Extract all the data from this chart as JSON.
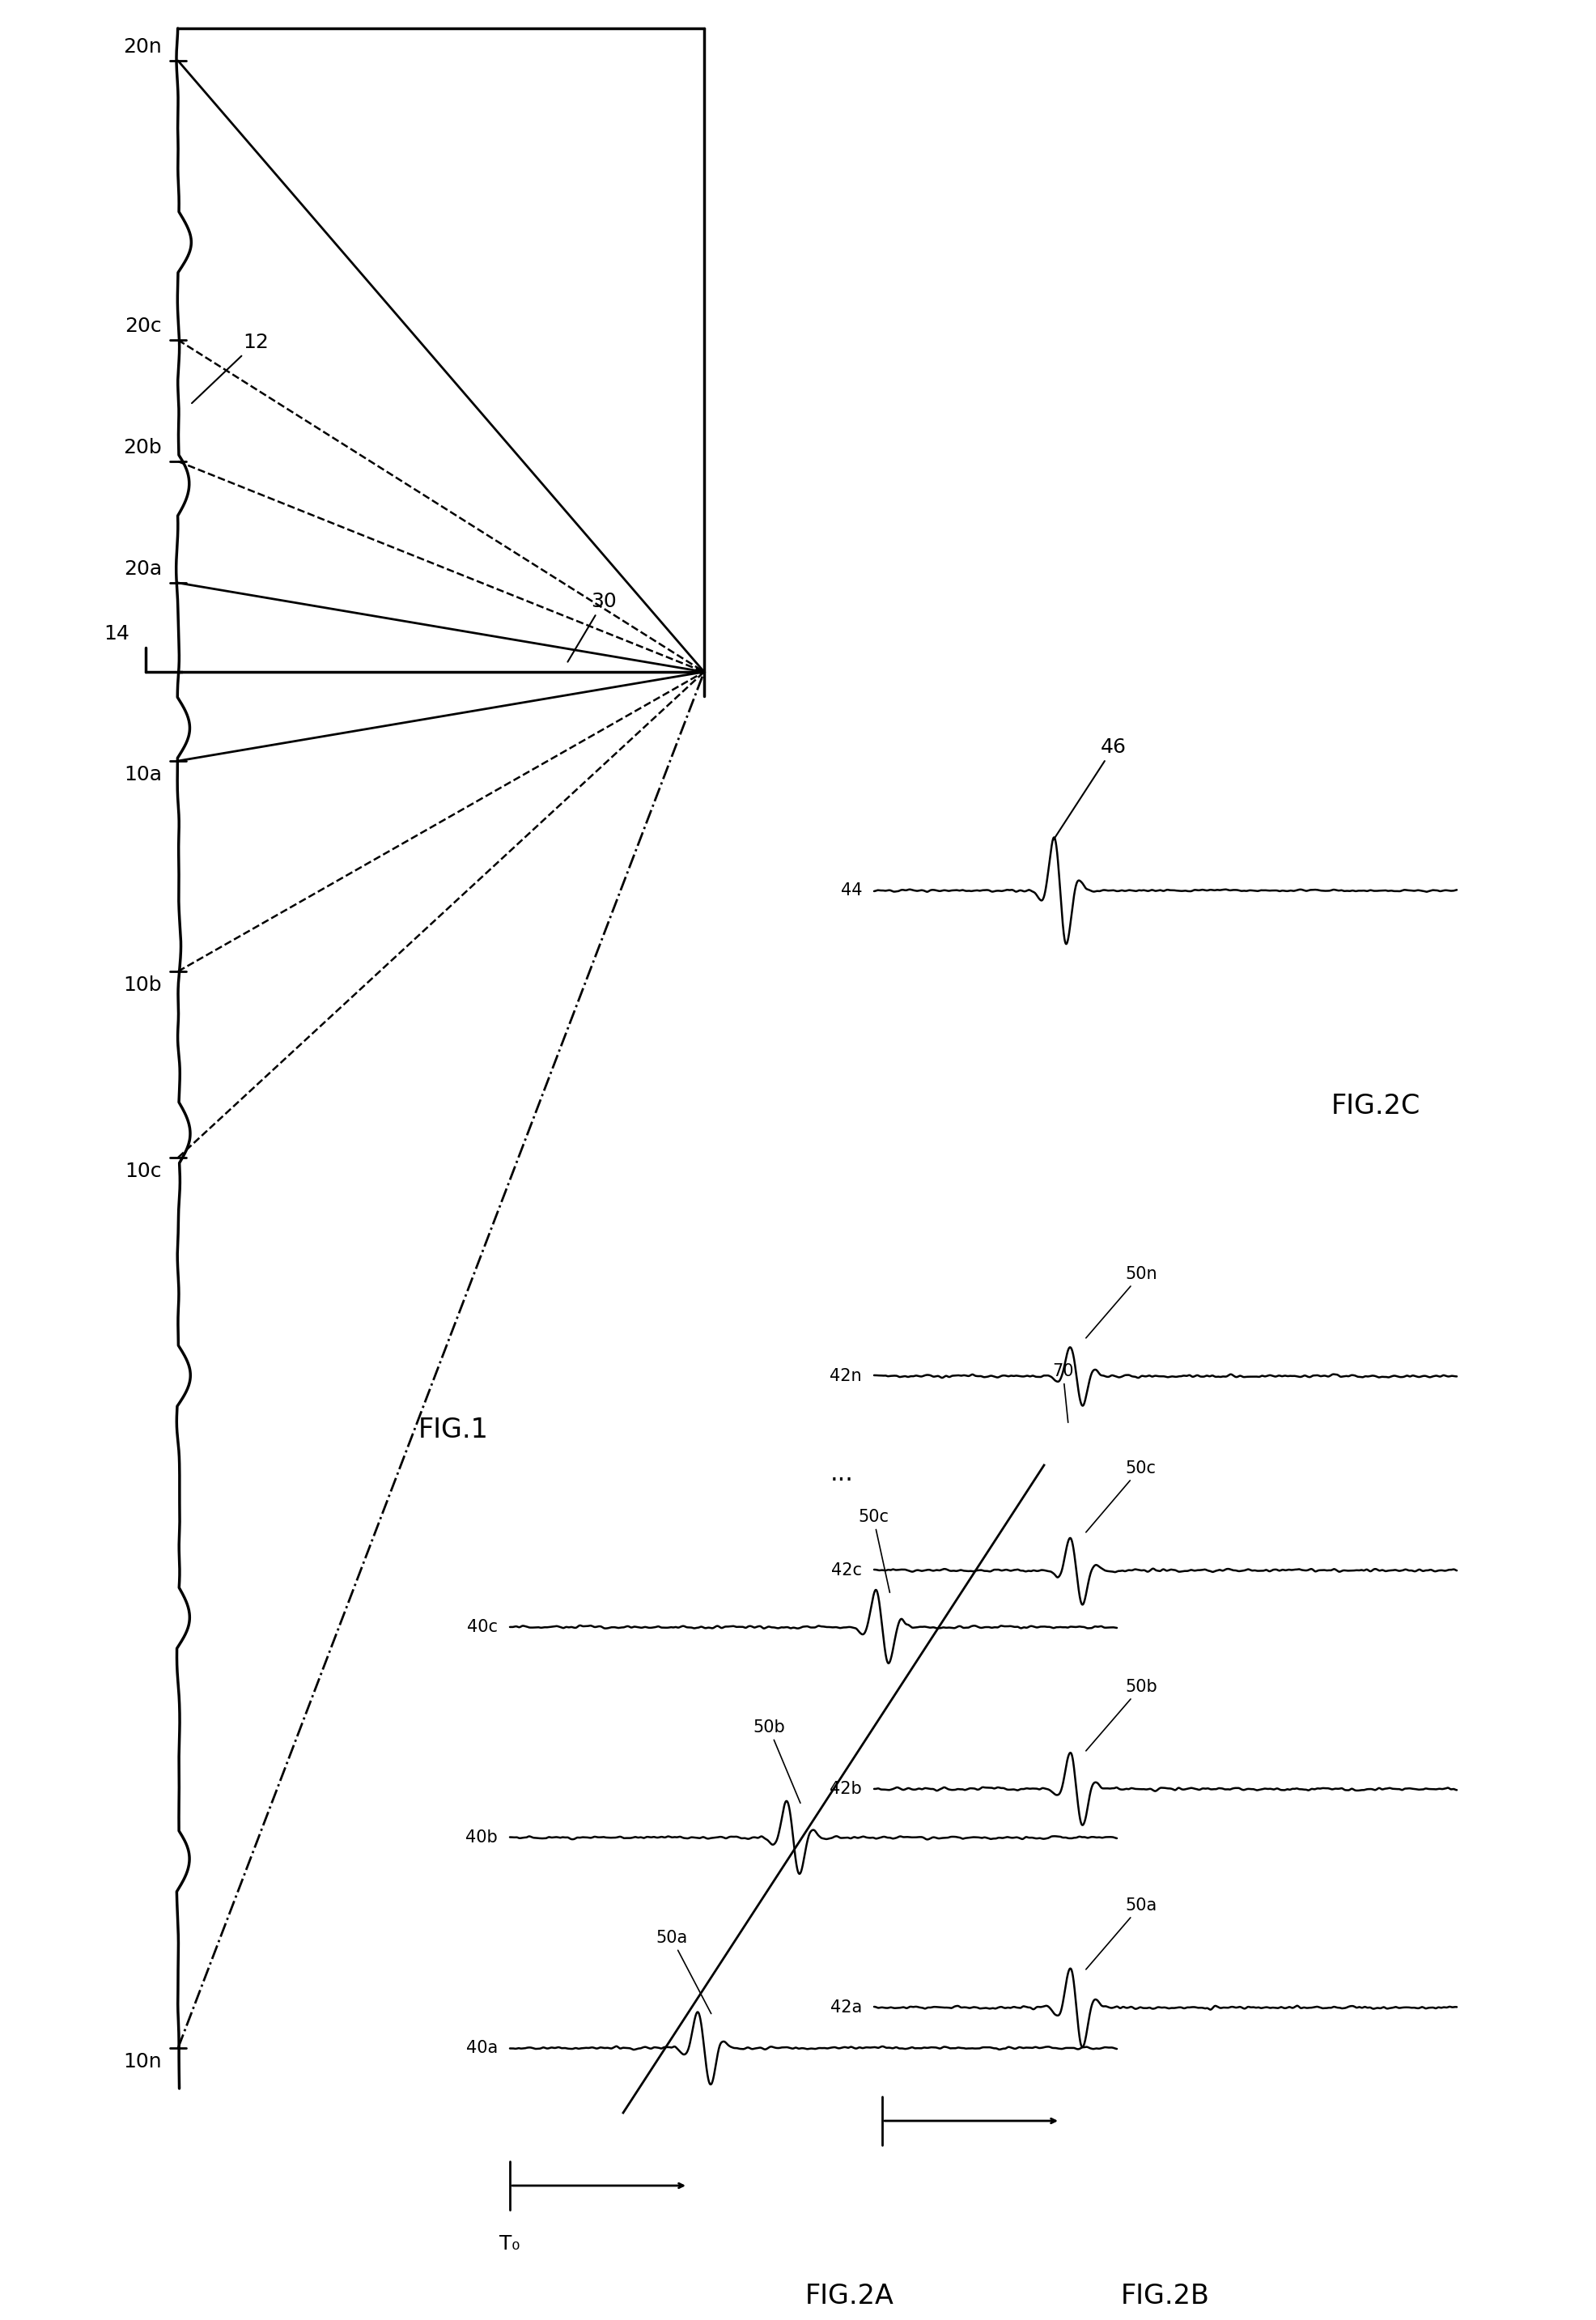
{
  "background_color": "#ffffff",
  "line_color": "#000000",
  "fig1_label": "FIG.1",
  "fig2a_label": "FIG.2A",
  "fig2b_label": "FIG.2B",
  "fig2c_label": "FIG.2C",
  "label_12": "12",
  "label_14": "14",
  "label_20a": "20a",
  "label_20b": "20b",
  "label_20c": "20c",
  "label_20n": "20n",
  "label_10a": "10a",
  "label_10b": "10b",
  "label_10c": "10c",
  "label_10n": "10n",
  "label_30": "30",
  "label_40a": "40a",
  "label_40b": "40b",
  "label_40c": "40c",
  "label_42a": "42a",
  "label_42b": "42b",
  "label_42c": "42c",
  "label_42n": "42n",
  "label_44": "44",
  "label_46": "46",
  "label_50a": "50a",
  "label_50b": "50b",
  "label_50c": "50c",
  "label_50n": "50n",
  "label_70": "70",
  "label_T0": "T₀",
  "fontsize_labels": 18,
  "fontsize_fig": 24,
  "fontsize_small": 15
}
